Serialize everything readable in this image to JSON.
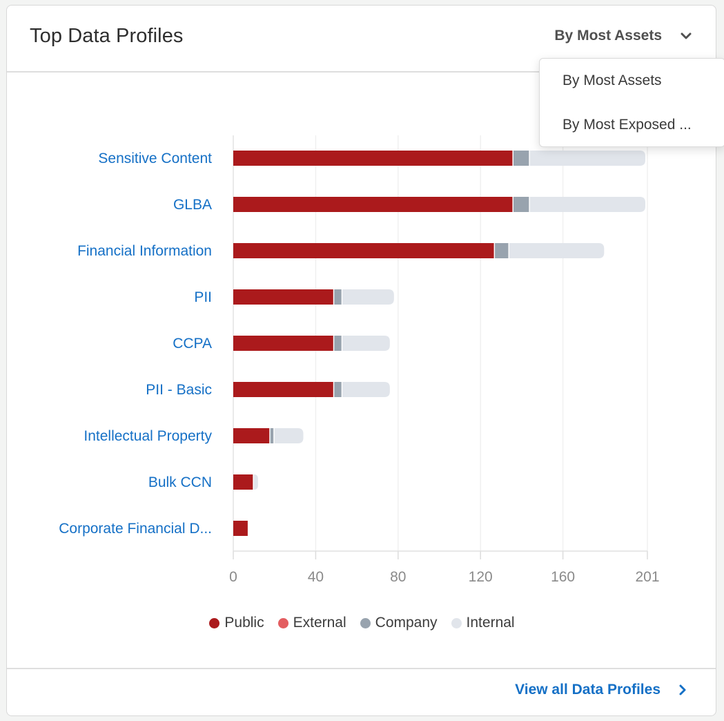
{
  "card": {
    "title": "Top Data Profiles",
    "sort": {
      "selected": "By Most Assets",
      "icon": "chevron-down-icon",
      "options": [
        "By Most Assets",
        "By Most Exposed ..."
      ]
    },
    "footer": {
      "link_label": "View all Data Profiles",
      "icon": "chevron-right-icon"
    }
  },
  "colors": {
    "public": "#ab1a1c",
    "external": "#e35d60",
    "company": "#98a3ae",
    "internal": "#e1e5eb",
    "link": "#1570c6"
  },
  "chart_data": {
    "type": "bar",
    "orientation": "horizontal",
    "stacked": true,
    "title": "",
    "xlabel": "",
    "ylabel": "",
    "xlim": [
      0,
      201
    ],
    "x_ticks": [
      "0",
      "40",
      "80",
      "120",
      "160",
      "201"
    ],
    "x_tick_values": [
      0,
      40,
      80,
      120,
      160,
      201
    ],
    "grid": true,
    "legend_position": "bottom",
    "categories": [
      "Sensitive Content",
      "GLBA",
      "Financial Information",
      "PII",
      "CCPA",
      "PII - Basic",
      "Intellectual Property",
      "Bulk CCN",
      "Corporate Financial D..."
    ],
    "series": [
      {
        "name": "Public",
        "color": "#ab1a1c",
        "values": [
          136,
          136,
          127,
          49,
          49,
          49,
          18,
          10,
          7
        ]
      },
      {
        "name": "External",
        "color": "#e35d60",
        "values": [
          0,
          0,
          0,
          0,
          0,
          0,
          0,
          0,
          0
        ]
      },
      {
        "name": "Company",
        "color": "#98a3ae",
        "values": [
          8,
          8,
          7,
          4,
          4,
          4,
          2,
          0,
          0
        ]
      },
      {
        "name": "Internal",
        "color": "#e1e5eb",
        "values": [
          56,
          56,
          46,
          25,
          23,
          23,
          14,
          2,
          0
        ]
      }
    ]
  }
}
